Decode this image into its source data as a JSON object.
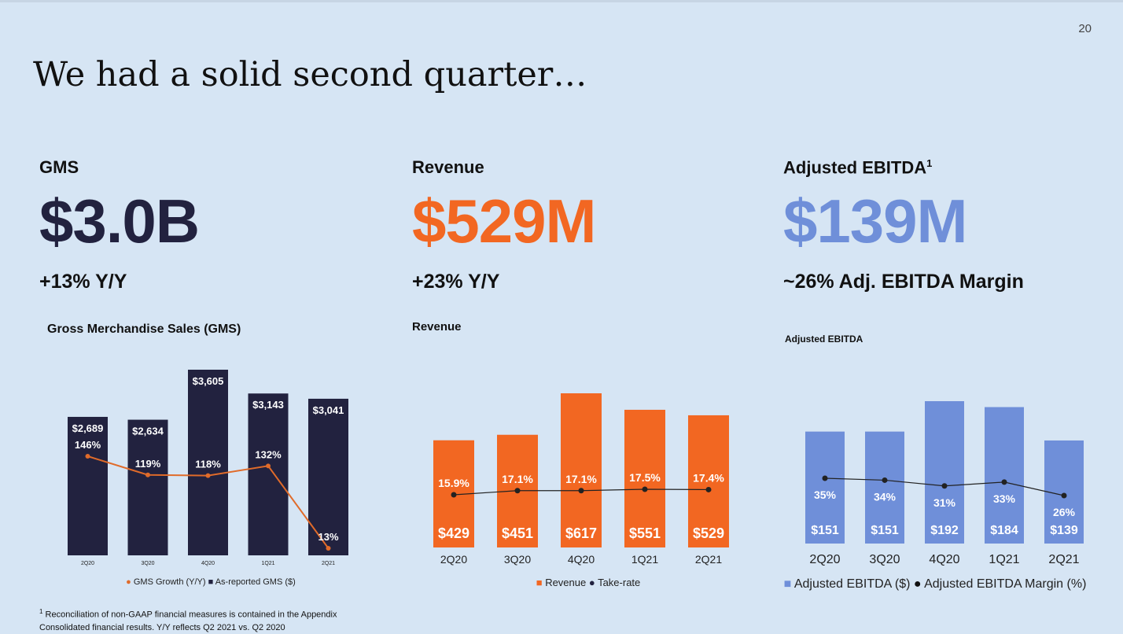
{
  "page_number": "20",
  "title": "We had a solid second quarter…",
  "colors": {
    "gms": "#22223f",
    "revenue": "#f26722",
    "ebitda": "#6f8fd9",
    "line": "#222222",
    "gms_growth_line": "#e06b2a"
  },
  "panels": [
    {
      "label": "GMS",
      "label_sup": "",
      "value": "$3.0B",
      "change": "+13% Y/Y",
      "chart_title": "Gross Merchandise Sales (GMS)"
    },
    {
      "label": "Revenue",
      "label_sup": "",
      "value": "$529M",
      "change": "+23% Y/Y",
      "chart_title": "Revenue"
    },
    {
      "label": "Adjusted EBITDA",
      "label_sup": "1",
      "value": "$139M",
      "change": "~26% Adj. EBITDA Margin",
      "chart_title": "Adjusted EBITDA"
    }
  ],
  "chart_data": [
    {
      "type": "bar",
      "title": "Gross Merchandise Sales (GMS)",
      "categories": [
        "2Q20",
        "3Q20",
        "4Q20",
        "1Q21",
        "2Q21"
      ],
      "series": [
        {
          "name": "As-reported GMS ($)",
          "kind": "bar",
          "values": [
            2689,
            2634,
            3605,
            3143,
            3041
          ],
          "labels": [
            "$2,689",
            "$2,634",
            "$3,605",
            "$3,143",
            "$3,041"
          ],
          "color": "#22223f"
        },
        {
          "name": "GMS Growth (Y/Y)",
          "kind": "line",
          "values": [
            146,
            119,
            118,
            132,
            13
          ],
          "labels": [
            "146%",
            "119%",
            "118%",
            "132%",
            "13%"
          ],
          "color": "#e06b2a"
        }
      ],
      "legend": {
        "position": "bottom",
        "items": [
          {
            "marker": "●",
            "label": "GMS Growth (Y/Y)",
            "color": "#e06b2a"
          },
          {
            "marker": "■",
            "label": "As-reported GMS ($)",
            "color": "#22223f"
          }
        ]
      }
    },
    {
      "type": "bar",
      "title": "Revenue",
      "categories": [
        "2Q20",
        "3Q20",
        "4Q20",
        "1Q21",
        "2Q21"
      ],
      "series": [
        {
          "name": "Revenue",
          "kind": "bar",
          "values": [
            429,
            451,
            617,
            551,
            529
          ],
          "labels": [
            "$429",
            "$451",
            "$617",
            "$551",
            "$529"
          ],
          "color": "#f26722"
        },
        {
          "name": "Take-rate",
          "kind": "line",
          "values": [
            15.9,
            17.1,
            17.1,
            17.5,
            17.4
          ],
          "labels": [
            "15.9%",
            "17.1%",
            "17.1%",
            "17.5%",
            "17.4%"
          ],
          "color": "#222222"
        }
      ],
      "legend": {
        "position": "bottom",
        "items": [
          {
            "marker": "■",
            "label": "Revenue",
            "color": "#f26722"
          },
          {
            "marker": "●",
            "label": "Take-rate",
            "color": "#22223f"
          }
        ]
      }
    },
    {
      "type": "bar",
      "title": "Adjusted EBITDA",
      "categories": [
        "2Q20",
        "3Q20",
        "4Q20",
        "1Q21",
        "2Q21"
      ],
      "series": [
        {
          "name": "Adjusted EBITDA ($)",
          "kind": "bar",
          "values": [
            151,
            151,
            192,
            184,
            139
          ],
          "labels": [
            "$151",
            "$151",
            "$192",
            "$184",
            "$139"
          ],
          "color": "#6f8fd9"
        },
        {
          "name": "Adjusted EBITDA Margin (%)",
          "kind": "line",
          "values": [
            35,
            34,
            31,
            33,
            26
          ],
          "labels": [
            "35%",
            "34%",
            "31%",
            "33%",
            "26%"
          ],
          "color": "#222222"
        }
      ],
      "legend": {
        "position": "bottom",
        "items": [
          {
            "marker": "■",
            "label": "Adjusted EBITDA ($)",
            "color": "#6f8fd9"
          },
          {
            "marker": "●",
            "label": "Adjusted EBITDA Margin (%)",
            "color": "#111111"
          }
        ]
      }
    }
  ],
  "footnotes": {
    "sup": "1",
    "line1": "Reconciliation of non-GAAP financial measures is contained in the Appendix",
    "line2": "Consolidated financial results. Y/Y reflects Q2 2021 vs. Q2 2020"
  }
}
